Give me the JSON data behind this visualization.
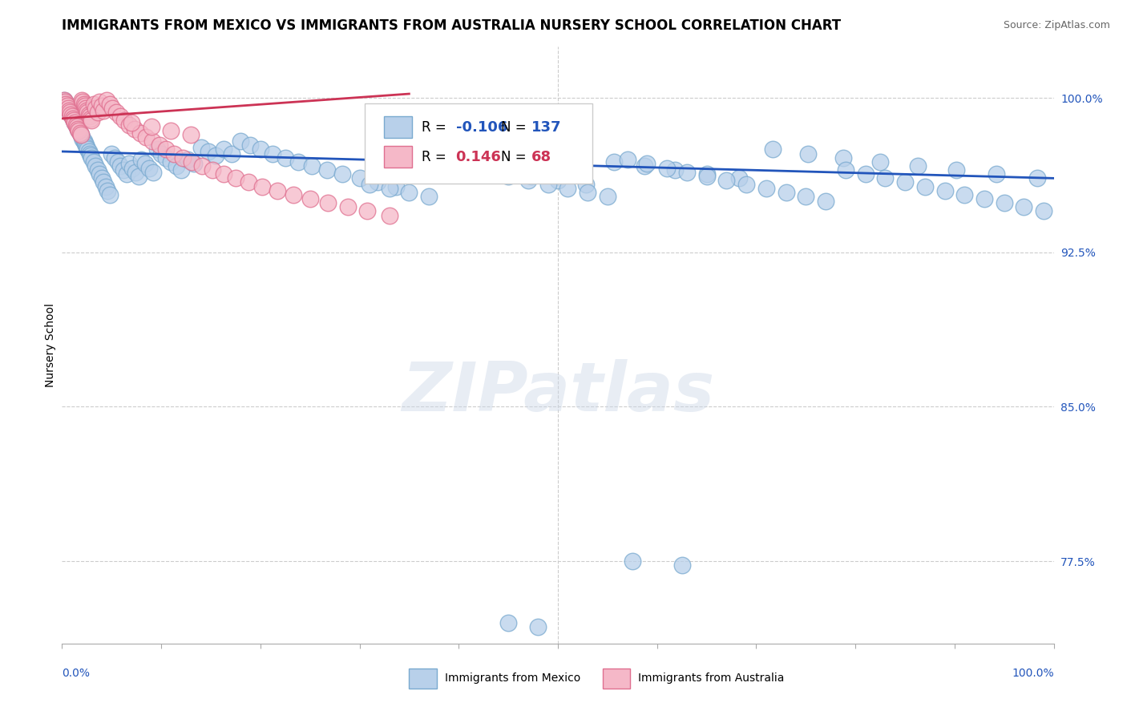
{
  "title": "IMMIGRANTS FROM MEXICO VS IMMIGRANTS FROM AUSTRALIA NURSERY SCHOOL CORRELATION CHART",
  "source": "Source: ZipAtlas.com",
  "ylabel": "Nursery School",
  "xlim": [
    0.0,
    1.0
  ],
  "ylim": [
    0.735,
    1.025
  ],
  "yticks": [
    0.775,
    0.85,
    0.925,
    1.0
  ],
  "ytick_labels": [
    "77.5%",
    "85.0%",
    "92.5%",
    "100.0%"
  ],
  "legend_blue_r": "-0.106",
  "legend_blue_n": "137",
  "legend_pink_r": "0.146",
  "legend_pink_n": "68",
  "legend_blue_label": "Immigrants from Mexico",
  "legend_pink_label": "Immigrants from Australia",
  "blue_color": "#b8d0ea",
  "blue_edge_color": "#7aaad0",
  "pink_color": "#f5b8c8",
  "pink_edge_color": "#e07090",
  "blue_line_color": "#2255bb",
  "pink_line_color": "#cc3355",
  "watermark": "ZIPatlas",
  "blue_scatter_x": [
    0.002,
    0.003,
    0.004,
    0.005,
    0.006,
    0.007,
    0.008,
    0.009,
    0.01,
    0.011,
    0.012,
    0.013,
    0.014,
    0.015,
    0.016,
    0.017,
    0.018,
    0.019,
    0.02,
    0.021,
    0.022,
    0.023,
    0.024,
    0.025,
    0.026,
    0.027,
    0.028,
    0.029,
    0.03,
    0.032,
    0.034,
    0.036,
    0.038,
    0.04,
    0.042,
    0.044,
    0.046,
    0.048,
    0.05,
    0.053,
    0.056,
    0.059,
    0.062,
    0.065,
    0.068,
    0.071,
    0.074,
    0.077,
    0.08,
    0.084,
    0.088,
    0.092,
    0.096,
    0.1,
    0.105,
    0.11,
    0.115,
    0.12,
    0.127,
    0.133,
    0.14,
    0.148,
    0.155,
    0.163,
    0.171,
    0.18,
    0.19,
    0.2,
    0.212,
    0.225,
    0.238,
    0.252,
    0.267,
    0.283,
    0.3,
    0.318,
    0.337,
    0.357,
    0.378,
    0.4,
    0.423,
    0.447,
    0.473,
    0.5,
    0.528,
    0.557,
    0.587,
    0.618,
    0.65,
    0.683,
    0.717,
    0.752,
    0.788,
    0.825,
    0.863,
    0.902,
    0.942,
    0.983,
    0.31,
    0.33,
    0.35,
    0.37,
    0.39,
    0.41,
    0.43,
    0.45,
    0.47,
    0.49,
    0.51,
    0.53,
    0.55,
    0.57,
    0.59,
    0.61,
    0.63,
    0.65,
    0.67,
    0.69,
    0.71,
    0.73,
    0.75,
    0.77,
    0.79,
    0.81,
    0.83,
    0.85,
    0.87,
    0.89,
    0.91,
    0.93,
    0.95,
    0.97,
    0.99,
    0.575,
    0.625,
    0.45,
    0.48
  ],
  "blue_scatter_y": [
    0.999,
    0.998,
    0.997,
    0.996,
    0.995,
    0.994,
    0.993,
    0.992,
    0.991,
    0.99,
    0.989,
    0.988,
    0.987,
    0.986,
    0.985,
    0.984,
    0.983,
    0.982,
    0.981,
    0.98,
    0.979,
    0.978,
    0.977,
    0.976,
    0.975,
    0.974,
    0.973,
    0.972,
    0.971,
    0.969,
    0.967,
    0.965,
    0.963,
    0.961,
    0.959,
    0.957,
    0.955,
    0.953,
    0.973,
    0.971,
    0.969,
    0.967,
    0.965,
    0.963,
    0.968,
    0.966,
    0.964,
    0.962,
    0.97,
    0.968,
    0.966,
    0.964,
    0.975,
    0.973,
    0.971,
    0.969,
    0.967,
    0.965,
    0.97,
    0.968,
    0.976,
    0.974,
    0.972,
    0.975,
    0.973,
    0.979,
    0.977,
    0.975,
    0.973,
    0.971,
    0.969,
    0.967,
    0.965,
    0.963,
    0.961,
    0.959,
    0.957,
    0.972,
    0.97,
    0.968,
    0.966,
    0.964,
    0.962,
    0.96,
    0.958,
    0.969,
    0.967,
    0.965,
    0.963,
    0.961,
    0.975,
    0.973,
    0.971,
    0.969,
    0.967,
    0.965,
    0.963,
    0.961,
    0.958,
    0.956,
    0.954,
    0.952,
    0.968,
    0.966,
    0.964,
    0.962,
    0.96,
    0.958,
    0.956,
    0.954,
    0.952,
    0.97,
    0.968,
    0.966,
    0.964,
    0.962,
    0.96,
    0.958,
    0.956,
    0.954,
    0.952,
    0.95,
    0.965,
    0.963,
    0.961,
    0.959,
    0.957,
    0.955,
    0.953,
    0.951,
    0.949,
    0.947,
    0.945,
    0.775,
    0.773,
    0.745,
    0.743
  ],
  "pink_scatter_x": [
    0.002,
    0.003,
    0.004,
    0.005,
    0.006,
    0.007,
    0.008,
    0.009,
    0.01,
    0.011,
    0.012,
    0.013,
    0.014,
    0.015,
    0.016,
    0.017,
    0.018,
    0.019,
    0.02,
    0.021,
    0.022,
    0.023,
    0.024,
    0.025,
    0.026,
    0.027,
    0.028,
    0.029,
    0.03,
    0.032,
    0.034,
    0.036,
    0.038,
    0.04,
    0.042,
    0.045,
    0.048,
    0.051,
    0.055,
    0.059,
    0.063,
    0.068,
    0.073,
    0.079,
    0.085,
    0.091,
    0.098,
    0.105,
    0.113,
    0.122,
    0.131,
    0.141,
    0.152,
    0.163,
    0.175,
    0.188,
    0.202,
    0.217,
    0.233,
    0.25,
    0.268,
    0.288,
    0.308,
    0.33,
    0.07,
    0.09,
    0.11,
    0.13
  ],
  "pink_scatter_y": [
    0.999,
    0.998,
    0.997,
    0.996,
    0.995,
    0.994,
    0.993,
    0.992,
    0.991,
    0.99,
    0.989,
    0.988,
    0.987,
    0.986,
    0.985,
    0.984,
    0.983,
    0.982,
    0.999,
    0.998,
    0.997,
    0.996,
    0.995,
    0.994,
    0.993,
    0.992,
    0.991,
    0.99,
    0.989,
    0.997,
    0.995,
    0.993,
    0.998,
    0.996,
    0.994,
    0.999,
    0.997,
    0.995,
    0.993,
    0.991,
    0.989,
    0.987,
    0.985,
    0.983,
    0.981,
    0.979,
    0.977,
    0.975,
    0.973,
    0.971,
    0.969,
    0.967,
    0.965,
    0.963,
    0.961,
    0.959,
    0.957,
    0.955,
    0.953,
    0.951,
    0.949,
    0.947,
    0.945,
    0.943,
    0.988,
    0.986,
    0.984,
    0.982
  ],
  "blue_trendline_x": [
    0.0,
    1.0
  ],
  "blue_trendline_y": [
    0.974,
    0.961
  ],
  "pink_trendline_x": [
    0.0,
    0.35
  ],
  "pink_trendline_y": [
    0.99,
    1.002
  ],
  "grid_color": "#cccccc",
  "grid_style": "--",
  "title_fontsize": 12,
  "axis_label_fontsize": 10,
  "tick_fontsize": 10
}
